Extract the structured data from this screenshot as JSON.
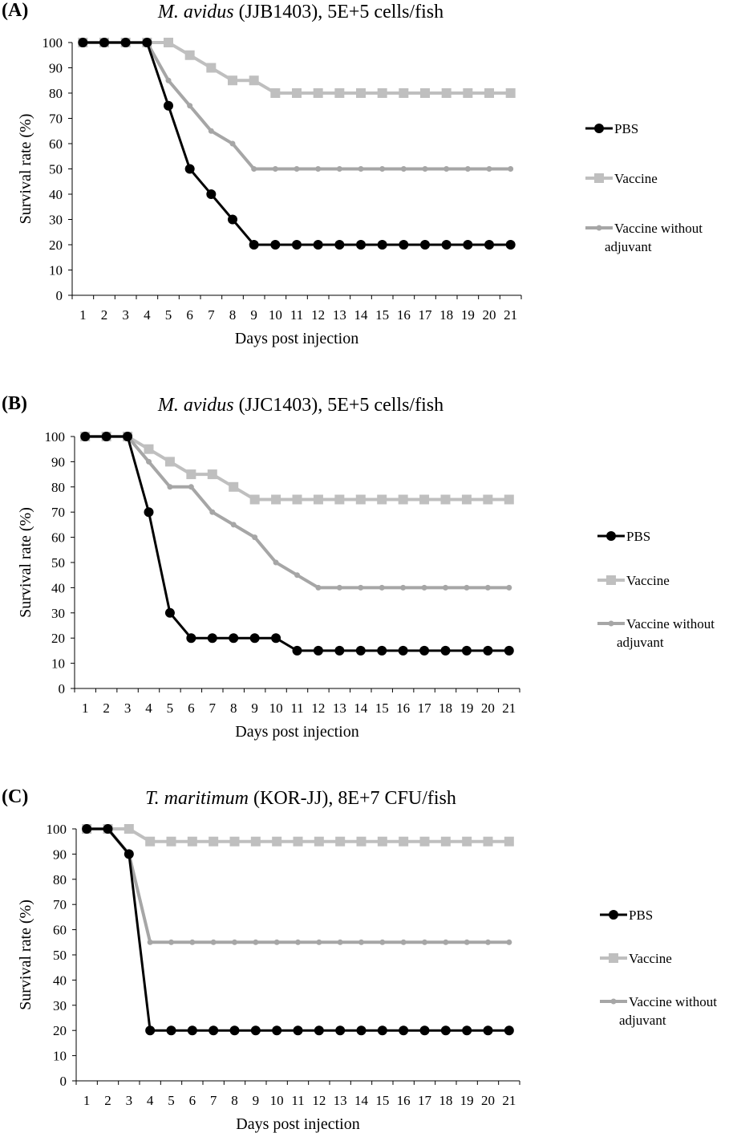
{
  "colors": {
    "pbs": "#000000",
    "vaccine": "#bfbfbf",
    "vaccine_no_adj": "#a6a6a6",
    "axis": "#000000"
  },
  "chart_data": [
    {
      "panel_label": "(A)",
      "title": {
        "organism": "M. avidus",
        "rest": "(JJB1403), 5E+5 cells/fish"
      },
      "type": "line",
      "xlabel": "Days post injection",
      "ylabel": "Survival rate  (%)",
      "ylim": [
        0,
        100
      ],
      "yticks": [
        0,
        10,
        20,
        30,
        40,
        50,
        60,
        70,
        80,
        90,
        100
      ],
      "x": [
        1,
        2,
        3,
        4,
        5,
        6,
        7,
        8,
        9,
        10,
        11,
        12,
        13,
        14,
        15,
        16,
        17,
        18,
        19,
        20,
        21
      ],
      "grid": false,
      "legend_position": "right",
      "series": [
        {
          "name": "PBS",
          "marker": "circle",
          "values": [
            100,
            100,
            100,
            100,
            75,
            50,
            40,
            30,
            20,
            20,
            20,
            20,
            20,
            20,
            20,
            20,
            20,
            20,
            20,
            20,
            20
          ]
        },
        {
          "name": "Vaccine",
          "marker": "square",
          "values": [
            100,
            100,
            100,
            100,
            100,
            95,
            90,
            85,
            85,
            80,
            80,
            80,
            80,
            80,
            80,
            80,
            80,
            80,
            80,
            80,
            80
          ]
        },
        {
          "name": "Vaccine without adjuvant",
          "marker": "small-circle",
          "values": [
            100,
            100,
            100,
            100,
            85,
            75,
            65,
            60,
            50,
            50,
            50,
            50,
            50,
            50,
            50,
            50,
            50,
            50,
            50,
            50,
            50
          ]
        }
      ]
    },
    {
      "panel_label": "(B)",
      "title": {
        "organism": "M. avidus",
        "rest": "(JJC1403), 5E+5 cells/fish"
      },
      "type": "line",
      "xlabel": "Days post injection",
      "ylabel": "Survival rate (%)",
      "ylim": [
        0,
        100
      ],
      "yticks": [
        0,
        10,
        20,
        30,
        40,
        50,
        60,
        70,
        80,
        90,
        100
      ],
      "x": [
        1,
        2,
        3,
        4,
        5,
        6,
        7,
        8,
        9,
        10,
        11,
        12,
        13,
        14,
        15,
        16,
        17,
        18,
        19,
        20,
        21
      ],
      "grid": false,
      "legend_position": "right",
      "series": [
        {
          "name": "PBS",
          "marker": "circle",
          "values": [
            100,
            100,
            100,
            70,
            30,
            20,
            20,
            20,
            20,
            20,
            15,
            15,
            15,
            15,
            15,
            15,
            15,
            15,
            15,
            15,
            15
          ]
        },
        {
          "name": "Vaccine",
          "marker": "square",
          "values": [
            100,
            100,
            100,
            95,
            90,
            85,
            85,
            80,
            75,
            75,
            75,
            75,
            75,
            75,
            75,
            75,
            75,
            75,
            75,
            75,
            75
          ]
        },
        {
          "name": "Vaccine without adjuvant",
          "marker": "small-circle",
          "values": [
            100,
            100,
            100,
            90,
            80,
            80,
            70,
            65,
            60,
            50,
            45,
            40,
            40,
            40,
            40,
            40,
            40,
            40,
            40,
            40,
            40
          ]
        }
      ]
    },
    {
      "panel_label": "(C)",
      "title": {
        "organism": "T. maritimum",
        "rest": "(KOR-JJ), 8E+7 CFU/fish"
      },
      "type": "line",
      "xlabel": "Days post injection",
      "ylabel": "Survival  rate (%)",
      "ylim": [
        0,
        100
      ],
      "yticks": [
        0,
        10,
        20,
        30,
        40,
        50,
        60,
        70,
        80,
        90,
        100
      ],
      "x": [
        1,
        2,
        3,
        4,
        5,
        6,
        7,
        8,
        9,
        10,
        11,
        12,
        13,
        14,
        15,
        16,
        17,
        18,
        19,
        20,
        21
      ],
      "grid": false,
      "legend_position": "right",
      "series": [
        {
          "name": "PBS",
          "marker": "circle",
          "values": [
            100,
            100,
            90,
            20,
            20,
            20,
            20,
            20,
            20,
            20,
            20,
            20,
            20,
            20,
            20,
            20,
            20,
            20,
            20,
            20,
            20
          ]
        },
        {
          "name": "Vaccine",
          "marker": "square",
          "values": [
            100,
            100,
            100,
            95,
            95,
            95,
            95,
            95,
            95,
            95,
            95,
            95,
            95,
            95,
            95,
            95,
            95,
            95,
            95,
            95,
            95
          ]
        },
        {
          "name": "Vaccine without adjuvant",
          "marker": "small-circle",
          "values": [
            100,
            100,
            90,
            55,
            55,
            55,
            55,
            55,
            55,
            55,
            55,
            55,
            55,
            55,
            55,
            55,
            55,
            55,
            55,
            55,
            55
          ]
        }
      ]
    }
  ]
}
